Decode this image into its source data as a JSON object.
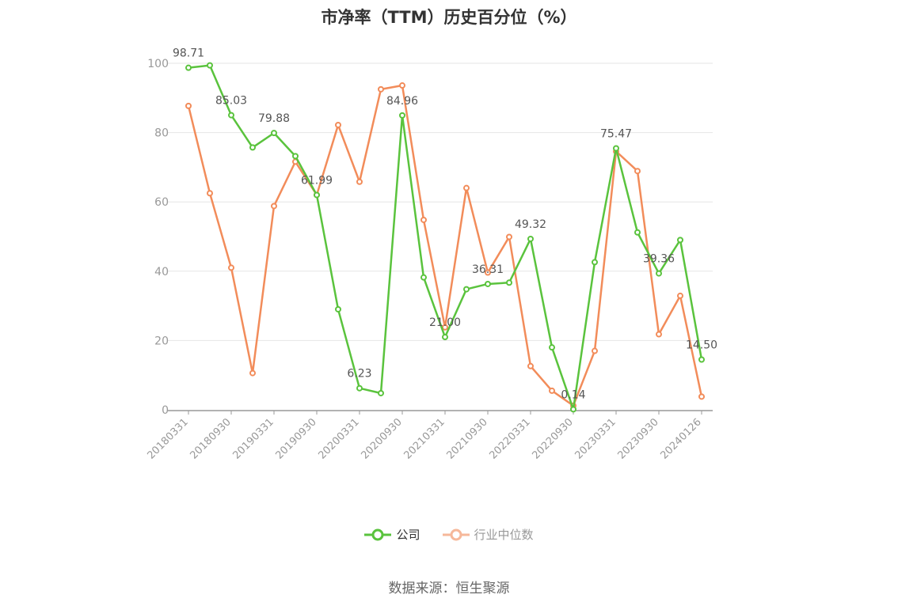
{
  "chart_data": {
    "type": "line",
    "title": "市净率（TTM）历史百分位（%）",
    "ylim": [
      0,
      100
    ],
    "yticks": [
      0,
      20,
      40,
      60,
      80,
      100
    ],
    "x_tick_labels": [
      "20180331",
      "20180930",
      "20190331",
      "20190930",
      "20200331",
      "20200930",
      "20210331",
      "20210930",
      "20220331",
      "20220930",
      "20230331",
      "20230930",
      "20240126"
    ],
    "grid": true,
    "legend": "bottom-center",
    "series": [
      {
        "name": "公司",
        "color": "#5ac33d",
        "values": [
          98.71,
          99.4,
          85.03,
          75.7,
          79.88,
          73.2,
          61.99,
          29.0,
          6.23,
          4.8,
          84.96,
          38.2,
          21.0,
          34.8,
          36.31,
          36.7,
          49.32,
          18.0,
          0.14,
          42.6,
          75.47,
          51.2,
          39.36,
          49.0,
          14.5
        ],
        "labels": {
          "0": "98.71",
          "2": "85.03",
          "4": "79.88",
          "6": "61.99",
          "8": "6.23",
          "10": "84.96",
          "12": "21.00",
          "14": "36.31",
          "16": "49.32",
          "18": "0.14",
          "20": "75.47",
          "22": "39.36",
          "24": "14.50"
        }
      },
      {
        "name": "行业中位数",
        "color": "#f28c5a",
        "values": [
          87.7,
          62.5,
          41.0,
          10.6,
          58.8,
          71.6,
          62.0,
          82.2,
          65.8,
          92.5,
          93.6,
          54.8,
          23.8,
          64.0,
          39.6,
          49.9,
          12.6,
          5.5,
          1.2,
          17.0,
          74.6,
          68.9,
          21.8,
          32.9,
          3.8
        ]
      }
    ]
  },
  "legend_items": [
    {
      "label": "公司",
      "color": "#5ac33d"
    },
    {
      "label": "行业中位数",
      "color": "#f6b89a"
    }
  ],
  "source": "数据来源：恒生聚源"
}
